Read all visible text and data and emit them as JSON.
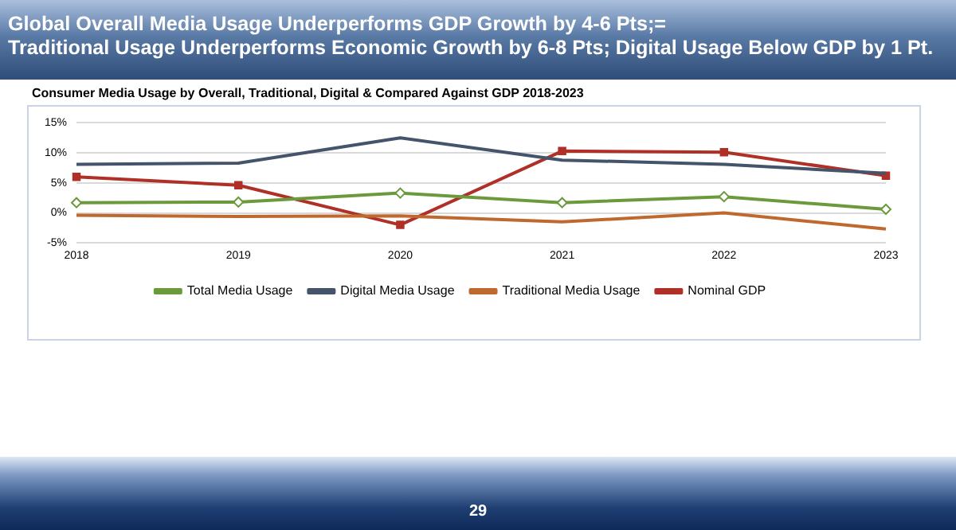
{
  "chart_data": {
    "type": "line",
    "title": "Global Overall Media Usage Underperforms GDP Growth by 4-6 Pts;=\nTraditional Usage Underperforms Economic Growth by 6-8 Pts; Digital Usage Below GDP by 1 Pt.",
    "subtitle": "Consumer Media Usage by Overall, Traditional, Digital & Compared Against GDP 2018-2023",
    "categories": [
      "2018",
      "2019",
      "2020",
      "2021",
      "2022",
      "2023"
    ],
    "series": [
      {
        "name": "Total Media Usage",
        "color": "#6a9a3c",
        "marker": "diamond",
        "values": [
          1.7,
          1.8,
          3.3,
          1.7,
          2.7,
          0.6
        ]
      },
      {
        "name": "Digital Media Usage",
        "color": "#44546a",
        "marker": "none",
        "values": [
          8.1,
          8.3,
          12.5,
          8.8,
          8.1,
          6.6
        ]
      },
      {
        "name": "Traditional Media Usage",
        "color": "#c0692e",
        "marker": "none",
        "values": [
          -0.4,
          -0.6,
          -0.5,
          -1.5,
          0,
          -2.7
        ]
      },
      {
        "name": "Nominal GDP",
        "color": "#b03028",
        "marker": "square",
        "values": [
          6.0,
          4.6,
          -2.0,
          10.3,
          10.1,
          6.2
        ]
      }
    ],
    "ylim": [
      -5,
      15
    ],
    "yticks": [
      {
        "value": -5,
        "label": "-5%"
      },
      {
        "value": 0,
        "label": "0%"
      },
      {
        "value": 5,
        "label": "5%"
      },
      {
        "value": 10,
        "label": "10%"
      },
      {
        "value": 15,
        "label": "15%"
      }
    ],
    "grid": "y",
    "legend": "bottom",
    "line_style": "solid",
    "annotations": [
      "29"
    ]
  }
}
